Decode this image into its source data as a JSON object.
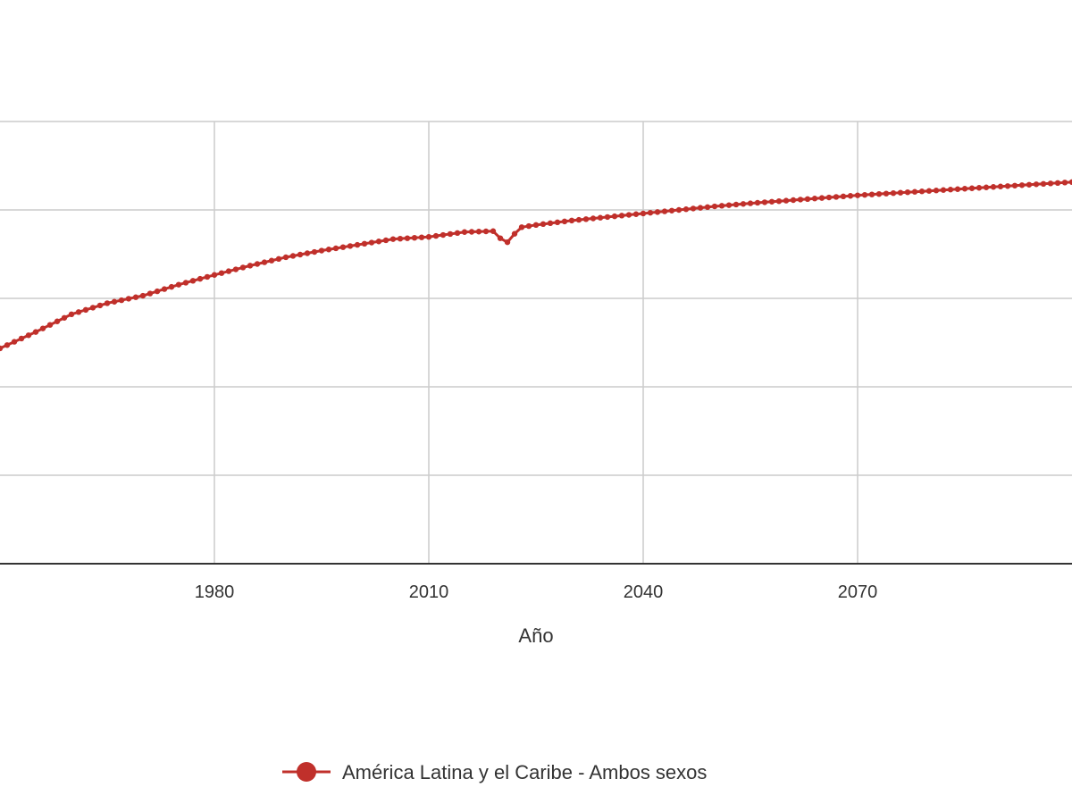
{
  "chart_data": {
    "type": "line",
    "title": "",
    "xlabel": "Año",
    "ylabel": "",
    "x_ticks": [
      "1980",
      "2010",
      "2040",
      "2070"
    ],
    "xlim": [
      1950,
      2100
    ],
    "ylim": [
      0,
      100
    ],
    "grid": true,
    "legend_position": "bottom",
    "series": [
      {
        "name": "América Latina y el Caribe - Ambos sexos",
        "color": "#c0302b",
        "x": [
          1950,
          1955,
          1960,
          1965,
          1970,
          1975,
          1980,
          1985,
          1990,
          1995,
          2000,
          2005,
          2010,
          2015,
          2019,
          2020,
          2021,
          2022,
          2023,
          2025,
          2030,
          2035,
          2040,
          2045,
          2050,
          2055,
          2060,
          2065,
          2070,
          2075,
          2080,
          2085,
          2090,
          2095,
          2100
        ],
        "values": [
          48.7,
          52.4,
          56.4,
          58.9,
          60.6,
          63.1,
          65.3,
          67.4,
          69.3,
          70.8,
          72.1,
          73.4,
          73.9,
          75.0,
          75.2,
          73.6,
          72.7,
          74.6,
          76.1,
          76.6,
          77.6,
          78.4,
          79.2,
          80.0,
          80.8,
          81.5,
          82.1,
          82.7,
          83.3,
          83.8,
          84.3,
          84.8,
          85.3,
          85.8,
          86.3
        ]
      }
    ]
  }
}
